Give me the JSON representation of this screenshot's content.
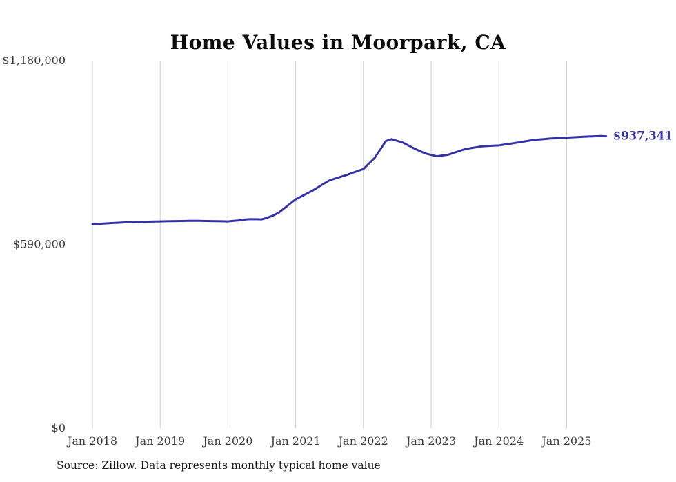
{
  "page": {
    "title": "Home Values in Moorpark, CA",
    "source_note": "Source: Zillow. Data represents monthly typical home value"
  },
  "chart_data": {
    "type": "line",
    "title": "Home Values in Moorpark, CA",
    "xlabel": "",
    "ylabel": "",
    "ylim": [
      0,
      1180000
    ],
    "grid": "vertical-only",
    "legend": "none",
    "line_color": "#3332a8",
    "grid_color": "#cccccc",
    "end_label": "$937,341",
    "end_value": 937341,
    "y_ticks": [
      {
        "value": 0,
        "label": "$0"
      },
      {
        "value": 590000,
        "label": "$590,000"
      },
      {
        "value": 1180000,
        "label": "$1,180,000"
      }
    ],
    "x_tick_labels": [
      "Jan 2018",
      "Jan 2019",
      "Jan 2020",
      "Jan 2021",
      "Jan 2022",
      "Jan 2023",
      "Jan 2024",
      "Jan 2025"
    ],
    "series": [
      {
        "name": "Monthly typical home value",
        "start_month": "2018-01",
        "end_month": "2025-08",
        "values": [
          655000,
          656000,
          657000,
          658000,
          659000,
          660000,
          661000,
          661500,
          662000,
          662500,
          663000,
          663500,
          664000,
          664300,
          664700,
          665000,
          665300,
          665700,
          666000,
          665700,
          665300,
          665000,
          664700,
          664300,
          664000,
          665700,
          667300,
          670000,
          671500,
          671000,
          670500,
          676000,
          683000,
          692000,
          706300,
          720700,
          735000,
          744300,
          753700,
          763000,
          774000,
          785000,
          796000,
          801700,
          807300,
          813000,
          819300,
          825700,
          832000,
          850000,
          868000,
          895000,
          922000,
          928000,
          922500,
          917000,
          907500,
          898000,
          890000,
          882000,
          877500,
          873000,
          875500,
          878000,
          884000,
          890000,
          896000,
          899000,
          902000,
          905000,
          906000,
          907000,
          908000,
          910700,
          913300,
          916000,
          919000,
          922000,
          925000,
          926700,
          928300,
          930000,
          931000,
          932000,
          933000,
          934000,
          935000,
          936000,
          936700,
          937300,
          938000,
          937341
        ]
      }
    ]
  }
}
